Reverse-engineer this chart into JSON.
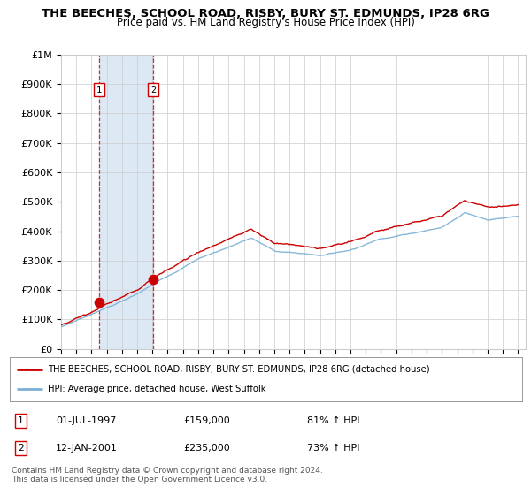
{
  "title1": "THE BEECHES, SCHOOL ROAD, RISBY, BURY ST. EDMUNDS, IP28 6RG",
  "title2": "Price paid vs. HM Land Registry's House Price Index (HPI)",
  "ylim": [
    0,
    1000000
  ],
  "xlim_start": 1995.0,
  "xlim_end": 2025.5,
  "yticks": [
    0,
    100000,
    200000,
    300000,
    400000,
    500000,
    600000,
    700000,
    800000,
    900000,
    1000000
  ],
  "ytick_labels": [
    "£0",
    "£100K",
    "£200K",
    "£300K",
    "£400K",
    "£500K",
    "£600K",
    "£700K",
    "£800K",
    "£900K",
    "£1M"
  ],
  "xticks": [
    1995,
    1996,
    1997,
    1998,
    1999,
    2000,
    2001,
    2002,
    2003,
    2004,
    2005,
    2006,
    2007,
    2008,
    2009,
    2010,
    2011,
    2012,
    2013,
    2014,
    2015,
    2016,
    2017,
    2018,
    2019,
    2020,
    2021,
    2022,
    2023,
    2024,
    2025
  ],
  "transaction1_x": 1997.5,
  "transaction1_y": 159000,
  "transaction1_label": "1",
  "transaction1_date": "01-JUL-1997",
  "transaction1_price": "£159,000",
  "transaction1_hpi": "81% ↑ HPI",
  "transaction2_x": 2001.04,
  "transaction2_y": 235000,
  "transaction2_label": "2",
  "transaction2_date": "12-JAN-2001",
  "transaction2_price": "£235,000",
  "transaction2_hpi": "73% ↑ HPI",
  "legend1_label": "THE BEECHES, SCHOOL ROAD, RISBY, BURY ST. EDMUNDS, IP28 6RG (detached house)",
  "legend2_label": "HPI: Average price, detached house, West Suffolk",
  "footnote": "Contains HM Land Registry data © Crown copyright and database right 2024.\nThis data is licensed under the Open Government Licence v3.0.",
  "red_line_color": "#cc0000",
  "blue_line_color": "#7bafd4",
  "shaded_color": "#dce9f5",
  "grid_color": "#cccccc",
  "background_color": "#ffffff",
  "title_color": "#000000"
}
